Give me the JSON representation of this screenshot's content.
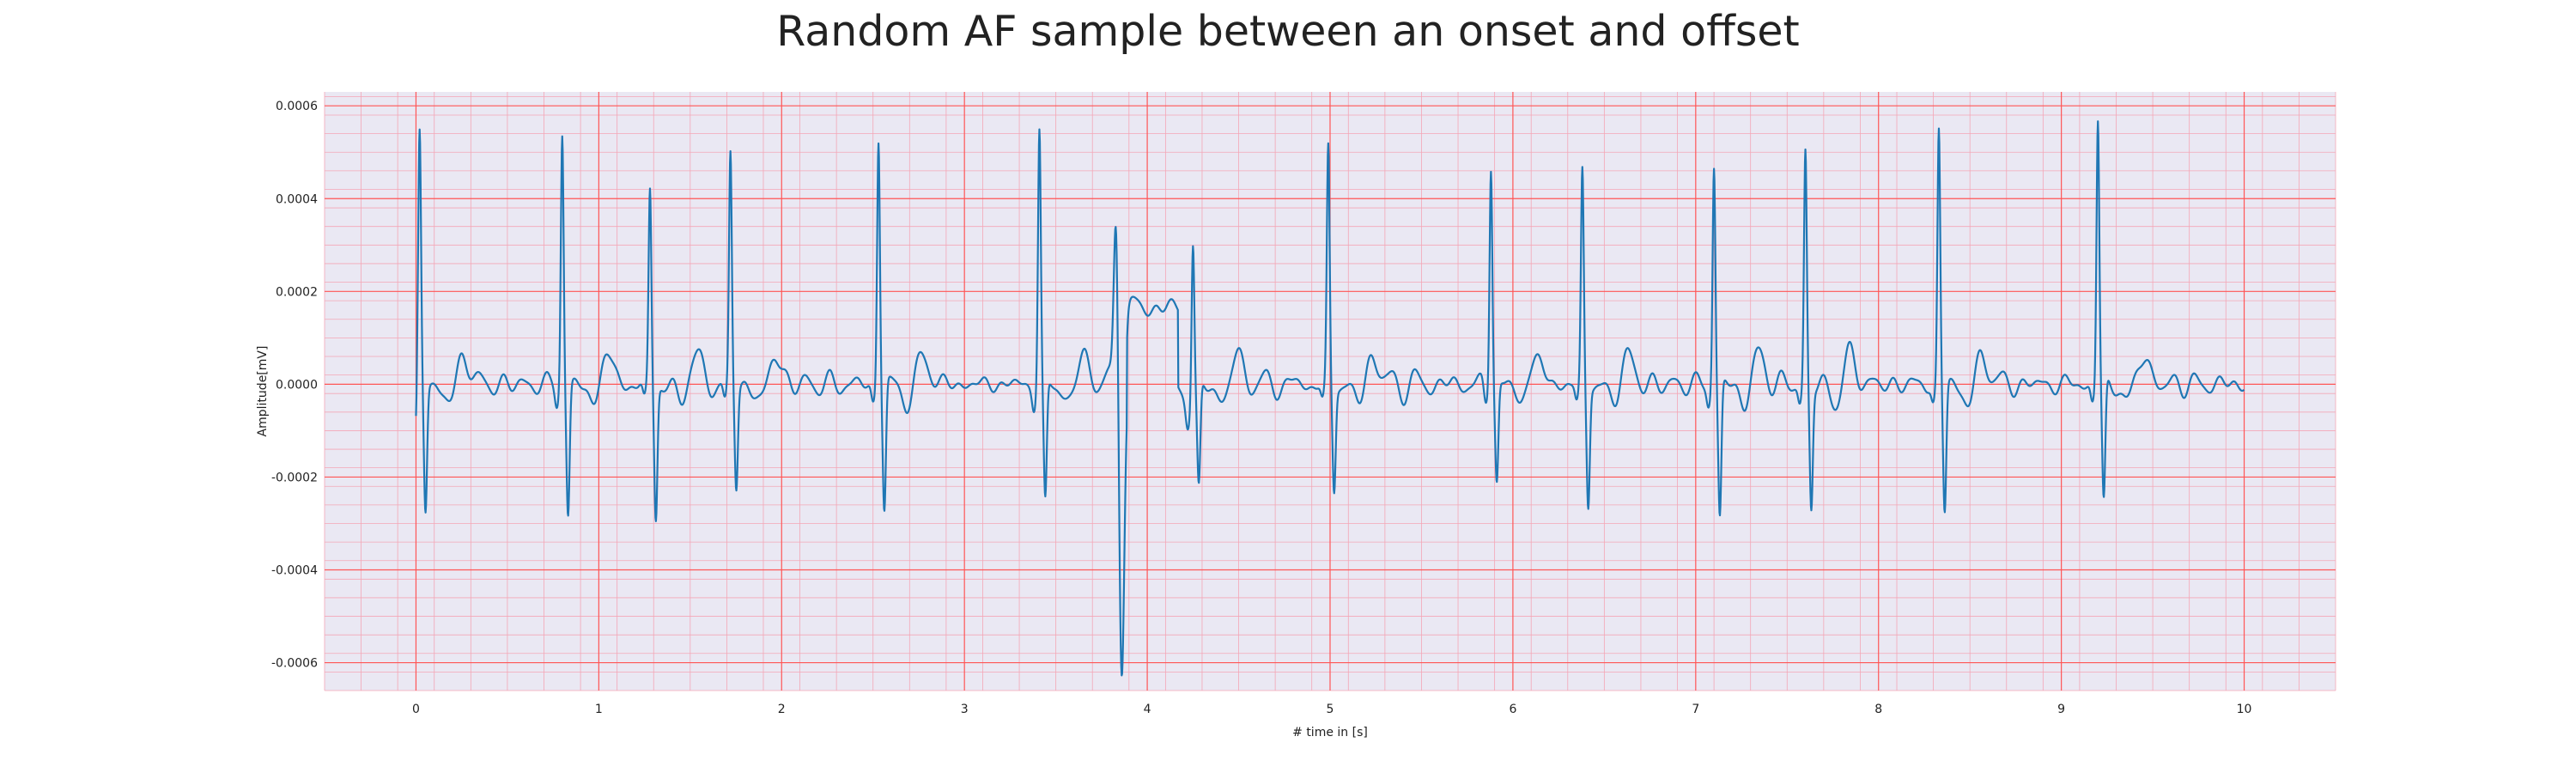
{
  "chart_data": {
    "type": "line",
    "title": "Random AF sample between an onset and offset",
    "xlabel": "# time in [s]",
    "ylabel": "Amplitude[mV]",
    "xlim": [
      -0.5,
      10.5
    ],
    "ylim": [
      -0.00066,
      0.00063
    ],
    "x_ticks": [
      0,
      1,
      2,
      3,
      4,
      5,
      6,
      7,
      8,
      9,
      10
    ],
    "x_tick_labels": [
      "0",
      "1",
      "2",
      "3",
      "4",
      "5",
      "6",
      "7",
      "8",
      "9",
      "10"
    ],
    "y_ticks": [
      0.0006,
      0.0004,
      0.0002,
      0.0,
      -0.0002,
      -0.0004,
      -0.0006
    ],
    "y_tick_labels": [
      "0.0006",
      "0.0004",
      "0.0002",
      "0.0000",
      "-0.0002",
      "-0.0004",
      "-0.0006"
    ],
    "grid": true,
    "minor_grid": true,
    "legend": "none",
    "colors": {
      "line": "#1f77b4",
      "grid_major": "#ff5555",
      "grid_minor": "#f4a6b6",
      "background": "#eae8f3"
    },
    "series": [
      {
        "line_color": "#1f77b4",
        "beats": [
          {
            "t": 0.02,
            "r": 0.00053,
            "s": -0.000275
          },
          {
            "t": 0.8,
            "r": 0.000545,
            "s": -0.00028
          },
          {
            "t": 1.28,
            "r": 0.000415,
            "s": -0.000285
          },
          {
            "t": 1.72,
            "r": 0.00049,
            "s": -0.00022
          },
          {
            "t": 2.53,
            "r": 0.000535,
            "s": -0.000275
          },
          {
            "t": 3.41,
            "r": 0.000545,
            "s": -0.000265
          },
          {
            "t": 4.25,
            "r": 0.000345,
            "s": -0.00022
          },
          {
            "t": 4.99,
            "r": 0.0005,
            "s": -0.00022
          },
          {
            "t": 5.88,
            "r": 0.00048,
            "s": -0.00021
          },
          {
            "t": 6.38,
            "r": 0.000455,
            "s": -0.000255
          },
          {
            "t": 7.1,
            "r": 0.000475,
            "s": -0.00029
          },
          {
            "t": 7.6,
            "r": 0.000495,
            "s": -0.000265
          },
          {
            "t": 8.33,
            "r": 0.000545,
            "s": -0.000275
          },
          {
            "t": 9.2,
            "r": 0.00057,
            "s": -0.00026
          }
        ],
        "ectopic_beat": {
          "t": 3.86,
          "r": 0.00039,
          "s": -0.0006,
          "plateau": 0.000165,
          "plateau_end": 4.17
        },
        "x_start": 0.0,
        "x_end": 10.0,
        "start_value": -7e-05,
        "end_value": -2e-05
      }
    ]
  }
}
